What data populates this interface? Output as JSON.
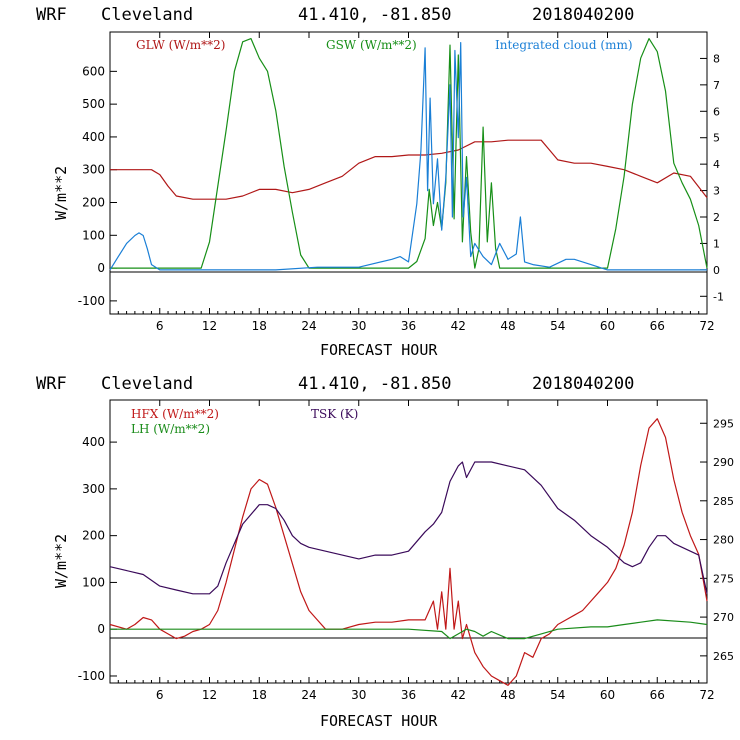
{
  "chart_data": [
    {
      "type": "line",
      "header": {
        "model": "WRF",
        "station": "Cleveland",
        "coords": "41.410, -81.850",
        "date": "2018040200"
      },
      "xlabel": "FORECAST HOUR",
      "ylabel": "W/m**2",
      "xlim": [
        0,
        72
      ],
      "ylim": [
        -140,
        720
      ],
      "xticks": [
        "6",
        "12",
        "18",
        "24",
        "30",
        "36",
        "42",
        "48",
        "54",
        "60",
        "66",
        "72"
      ],
      "yticks": [
        "-100",
        "0",
        "100",
        "200",
        "300",
        "400",
        "500",
        "600"
      ],
      "right_axis": {
        "ylim": [
          -1.67,
          9.0
        ],
        "ticks": [
          "-1",
          "0",
          "1",
          "2",
          "3",
          "4",
          "5",
          "6",
          "7",
          "8"
        ]
      },
      "series": [
        {
          "name": "GLW (W/m**2)",
          "color": "#b01818",
          "axis": "left",
          "x": [
            0,
            5,
            6,
            7,
            8,
            10,
            12,
            14,
            16,
            18,
            20,
            22,
            24,
            26,
            28,
            30,
            32,
            34,
            36,
            38,
            40,
            42,
            44,
            46,
            48,
            50,
            52,
            53,
            54,
            56,
            58,
            60,
            62,
            64,
            66,
            68,
            70,
            72
          ],
          "y": [
            300,
            300,
            285,
            250,
            220,
            210,
            210,
            210,
            220,
            240,
            240,
            230,
            240,
            260,
            280,
            320,
            340,
            340,
            345,
            345,
            350,
            360,
            385,
            385,
            390,
            390,
            390,
            360,
            330,
            320,
            320,
            310,
            300,
            280,
            260,
            290,
            280,
            215
          ]
        },
        {
          "name": "GSW (W/m**2)",
          "color": "#178f17",
          "axis": "left",
          "x": [
            0,
            11,
            12,
            14,
            15,
            16,
            17,
            18,
            19,
            20,
            21,
            22,
            23,
            24,
            30,
            36,
            37,
            38,
            38.5,
            39,
            39.5,
            40,
            40.5,
            41,
            41.5,
            42,
            42.5,
            43,
            43.5,
            44,
            44.5,
            45,
            45.5,
            46,
            46.5,
            47,
            48,
            60,
            61,
            62,
            63,
            64,
            65,
            66,
            67,
            68,
            69,
            70,
            71,
            72
          ],
          "y": [
            0,
            0,
            80,
            420,
            600,
            690,
            700,
            640,
            600,
            480,
            310,
            170,
            40,
            0,
            0,
            0,
            20,
            90,
            240,
            130,
            200,
            120,
            260,
            680,
            150,
            650,
            80,
            340,
            110,
            0,
            60,
            430,
            80,
            260,
            60,
            0,
            0,
            0,
            120,
            280,
            500,
            640,
            700,
            660,
            540,
            320,
            260,
            210,
            130,
            0
          ]
        },
        {
          "name": "Integrated cloud (mm)",
          "color": "#1a7fd6",
          "axis": "right",
          "x": [
            0,
            1,
            2,
            3,
            3.5,
            4,
            4.5,
            5,
            6,
            7,
            20,
            25,
            30,
            34,
            35,
            36,
            37,
            37.5,
            38,
            38.3,
            38.6,
            39,
            39.5,
            40,
            40.5,
            41,
            41.3,
            41.6,
            42,
            42.3,
            42.6,
            43,
            43.5,
            44,
            45,
            46,
            47,
            48,
            49,
            49.5,
            50,
            51,
            53,
            55,
            56,
            58,
            60,
            65,
            72
          ],
          "y": [
            0,
            0.5,
            1,
            1.3,
            1.4,
            1.3,
            0.8,
            0.2,
            0,
            0,
            0,
            0.1,
            0.1,
            0.4,
            0.5,
            0.3,
            2.5,
            4.5,
            8.4,
            3,
            6.5,
            2.5,
            4.2,
            1.5,
            3.5,
            7,
            2,
            8.3,
            5,
            8.6,
            2,
            3.5,
            0.5,
            1,
            0.5,
            0.2,
            1,
            0.4,
            0.6,
            2,
            0.3,
            0.2,
            0.1,
            0.4,
            0.4,
            0.2,
            0,
            0,
            0
          ]
        }
      ]
    },
    {
      "type": "line",
      "header": {
        "model": "WRF",
        "station": "Cleveland",
        "coords": "41.410, -81.850",
        "date": "2018040200"
      },
      "xlabel": "FORECAST HOUR",
      "ylabel": "W/m**2",
      "xlim": [
        0,
        72
      ],
      "ylim": [
        -115,
        490
      ],
      "xticks": [
        "6",
        "12",
        "18",
        "24",
        "30",
        "36",
        "42",
        "48",
        "54",
        "60",
        "66",
        "72"
      ],
      "yticks": [
        "-100",
        "0",
        "100",
        "200",
        "300",
        "400"
      ],
      "right_axis": {
        "ylim": [
          261.5,
          298.0
        ],
        "ticks": [
          "265",
          "270",
          "275",
          "280",
          "285",
          "290",
          "295"
        ]
      },
      "series": [
        {
          "name": "HFX (W/m**2)",
          "color": "#c01818",
          "axis": "left",
          "x": [
            0,
            2,
            3,
            4,
            5,
            6,
            7,
            8,
            9,
            10,
            11,
            12,
            13,
            14,
            15,
            16,
            17,
            18,
            19,
            20,
            21,
            22,
            23,
            24,
            25,
            26,
            28,
            30,
            32,
            34,
            36,
            38,
            39,
            39.5,
            40,
            40.5,
            41,
            41.5,
            42,
            42.5,
            43,
            44,
            45,
            46,
            47,
            48,
            49,
            50,
            51,
            52,
            53,
            54,
            55,
            56,
            57,
            58,
            59,
            60,
            61,
            62,
            63,
            64,
            65,
            66,
            67,
            68,
            69,
            70,
            71,
            72
          ],
          "y": [
            10,
            0,
            10,
            25,
            20,
            0,
            -10,
            -20,
            -15,
            -5,
            0,
            10,
            40,
            100,
            170,
            240,
            300,
            320,
            310,
            260,
            200,
            140,
            80,
            40,
            20,
            0,
            0,
            10,
            15,
            15,
            20,
            20,
            60,
            0,
            80,
            0,
            130,
            0,
            60,
            -20,
            10,
            -50,
            -80,
            -100,
            -110,
            -120,
            -100,
            -50,
            -60,
            -20,
            -10,
            10,
            20,
            30,
            40,
            60,
            80,
            100,
            130,
            180,
            250,
            350,
            430,
            450,
            410,
            320,
            250,
            200,
            160,
            60
          ]
        },
        {
          "name": "LH (W/m**2)",
          "color": "#1a8c1a",
          "axis": "left",
          "x": [
            0,
            12,
            36,
            40,
            41,
            42,
            43,
            44,
            45,
            46,
            48,
            50,
            52,
            54,
            58,
            60,
            62,
            64,
            66,
            70,
            72
          ],
          "y": [
            0,
            0,
            0,
            -5,
            -20,
            -10,
            0,
            -5,
            -15,
            -5,
            -20,
            -20,
            -10,
            0,
            5,
            5,
            10,
            15,
            20,
            15,
            10
          ]
        },
        {
          "name": "TSK (K)",
          "color": "#3a0a5a",
          "axis": "right",
          "x": [
            0,
            2,
            4,
            6,
            8,
            10,
            12,
            13,
            14,
            16,
            18,
            19,
            20,
            21,
            22,
            23,
            24,
            26,
            28,
            30,
            32,
            34,
            36,
            38,
            39,
            40,
            41,
            42,
            42.5,
            43,
            44,
            46,
            48,
            50,
            52,
            54,
            56,
            58,
            60,
            62,
            63,
            64,
            65,
            66,
            67,
            68,
            69,
            70,
            71,
            72
          ],
          "y": [
            276.5,
            276,
            275.5,
            274,
            273.5,
            273,
            273,
            274,
            277,
            282,
            284.5,
            284.5,
            284,
            282.5,
            280.5,
            279.5,
            279,
            278.5,
            278,
            277.5,
            278,
            278,
            278.5,
            281,
            282,
            283.5,
            287.5,
            289.5,
            290,
            288,
            290,
            290,
            289.5,
            289,
            287,
            284,
            282.5,
            280.5,
            279,
            277,
            276.5,
            277,
            279,
            280.5,
            280.5,
            279.5,
            279,
            278.5,
            278,
            273
          ]
        }
      ]
    }
  ]
}
